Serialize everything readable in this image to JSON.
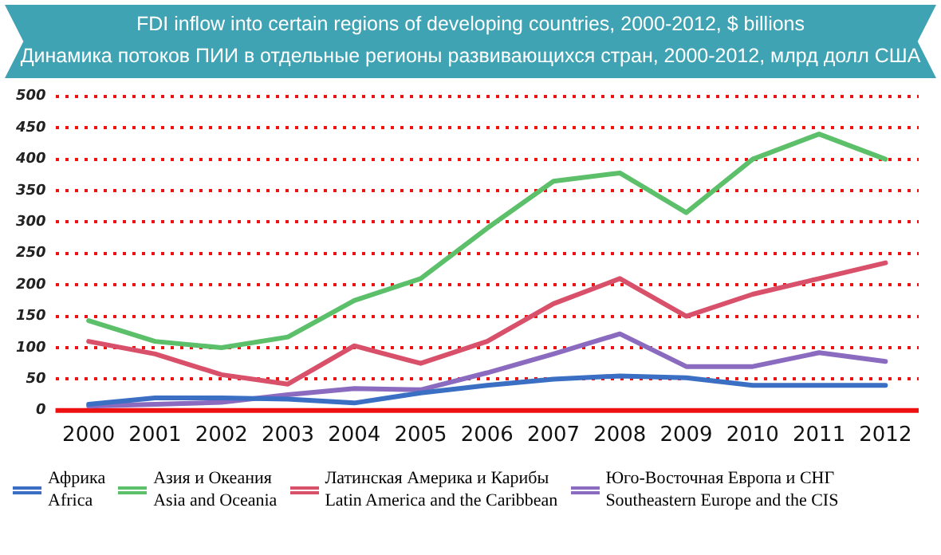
{
  "chart_data": {
    "type": "line",
    "title": "FDI inflow into certain regions of developing countries, 2000-2012, $ billions",
    "subtitle": "Динамика потоков ПИИ в отдельные регионы развивающихся стран, 2000-2012, млрд долл США",
    "categories": [
      "2000",
      "2001",
      "2002",
      "2003",
      "2004",
      "2005",
      "2006",
      "2007",
      "2008",
      "2009",
      "2010",
      "2011",
      "2012"
    ],
    "series": [
      {
        "name": "Африка\nAfrica",
        "color": "#3a6fc4",
        "values": [
          10,
          20,
          20,
          18,
          12,
          28,
          40,
          50,
          55,
          52,
          40,
          40,
          40
        ]
      },
      {
        "name": "Азия и Океания\nAsia and Oceania",
        "color": "#5cbf6a",
        "values": [
          143,
          110,
          100,
          117,
          175,
          210,
          290,
          365,
          378,
          315,
          400,
          440,
          400
        ]
      },
      {
        "name": "Латинская Америка и Карибы\nLatin America and the Caribbean",
        "color": "#d9506a",
        "values": [
          110,
          90,
          57,
          42,
          103,
          75,
          110,
          170,
          210,
          150,
          185,
          210,
          235
        ]
      },
      {
        "name": "Юго-Восточная Европа и СНГ\nSoutheastern Europe and the CIS",
        "color": "#8a6bbf",
        "values": [
          7,
          10,
          13,
          25,
          35,
          33,
          60,
          90,
          122,
          70,
          70,
          92,
          78
        ]
      }
    ],
    "ylim": [
      0,
      500
    ],
    "yticks": [
      0,
      50,
      100,
      150,
      200,
      250,
      300,
      350,
      400,
      450,
      500
    ],
    "grid": "y",
    "legend": "bottom",
    "marker": "none",
    "line_style": "solid"
  }
}
